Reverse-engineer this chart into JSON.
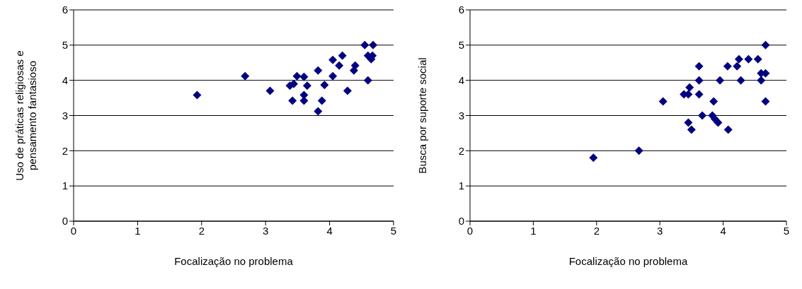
{
  "chart_data": [
    {
      "type": "scatter",
      "xlabel": "Focalização no problema",
      "ylabel": "Uso de práticas religiosas e pensamento fantasioso",
      "xlim": [
        0,
        5
      ],
      "xticks": [
        0,
        1,
        2,
        3,
        4,
        5
      ],
      "ylim": [
        0,
        6
      ],
      "yticks": [
        0,
        1,
        2,
        3,
        4,
        5,
        6
      ],
      "grid": "y",
      "marker": "diamond",
      "x": [
        1.93,
        2.68,
        3.07,
        3.38,
        3.42,
        3.44,
        3.49,
        3.6,
        3.6,
        3.6,
        3.65,
        3.82,
        3.82,
        3.88,
        3.92,
        4.05,
        4.05,
        4.15,
        4.2,
        4.28,
        4.38,
        4.4,
        4.55,
        4.6,
        4.6,
        4.67,
        4.68,
        4.65
      ],
      "series": [
        {
          "color": "#000080",
          "values": [
            3.58,
            4.12,
            3.7,
            3.85,
            3.42,
            3.9,
            4.12,
            4.1,
            3.42,
            3.58,
            3.85,
            4.28,
            3.12,
            3.42,
            3.87,
            4.12,
            4.58,
            4.42,
            4.7,
            3.7,
            4.28,
            4.42,
            5.0,
            4.7,
            4.0,
            4.7,
            5.0,
            4.6
          ]
        }
      ]
    },
    {
      "type": "scatter",
      "xlabel": "Focalização no problema",
      "ylabel": "Busca por suporte social",
      "xlim": [
        0,
        5
      ],
      "xticks": [
        0,
        1,
        2,
        3,
        4,
        5
      ],
      "ylim": [
        0,
        6
      ],
      "yticks": [
        0,
        1,
        2,
        3,
        4,
        5,
        6
      ],
      "grid": "y",
      "marker": "diamond",
      "x": [
        1.95,
        2.67,
        3.05,
        3.38,
        3.45,
        3.47,
        3.45,
        3.5,
        3.62,
        3.62,
        3.62,
        3.67,
        3.83,
        3.85,
        3.87,
        3.92,
        3.95,
        4.08,
        4.07,
        4.22,
        4.25,
        4.28,
        4.4,
        4.55,
        4.6,
        4.6,
        4.67,
        4.67,
        4.67
      ],
      "series": [
        {
          "color": "#000080",
          "values": [
            1.8,
            2.0,
            3.4,
            3.6,
            3.6,
            3.8,
            2.8,
            2.6,
            4.4,
            4.0,
            3.6,
            3.0,
            3.0,
            3.4,
            2.9,
            2.8,
            4.0,
            2.6,
            4.4,
            4.4,
            4.6,
            4.0,
            4.6,
            4.6,
            4.0,
            4.2,
            4.2,
            5.0,
            3.4
          ]
        }
      ]
    }
  ]
}
